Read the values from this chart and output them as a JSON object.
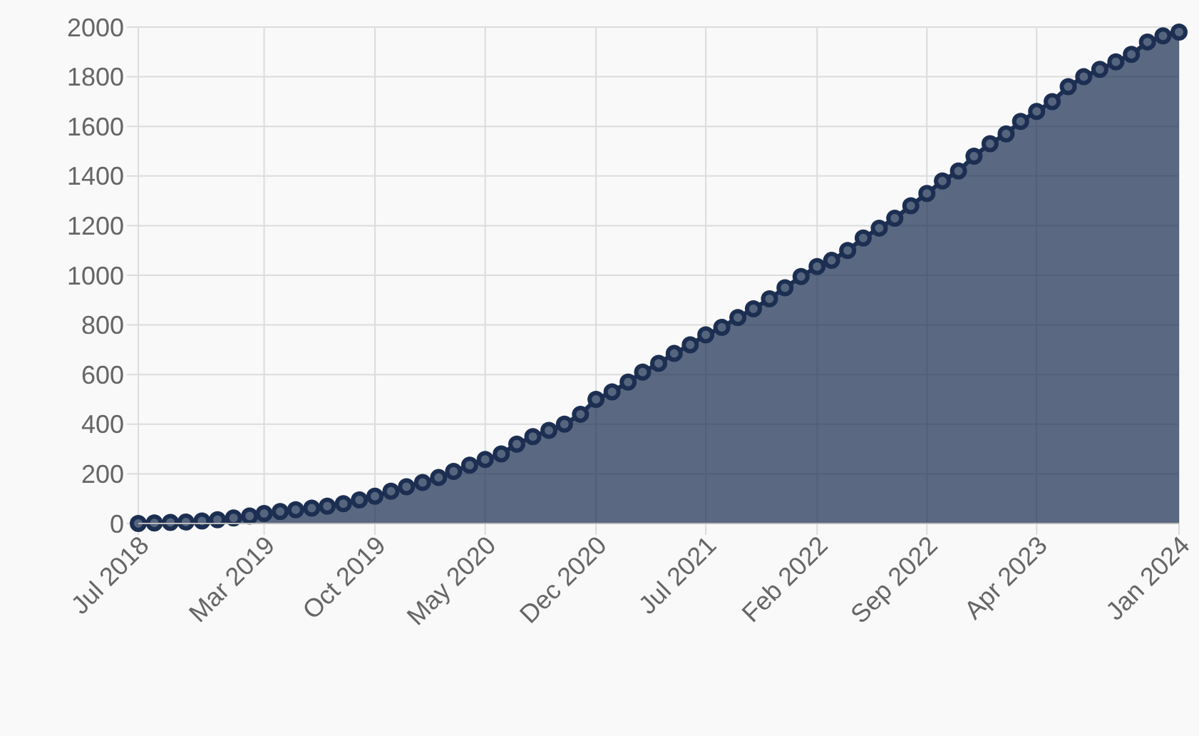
{
  "chart_data": {
    "type": "area",
    "xlim": [
      "2018-07",
      "2024-01"
    ],
    "xticks": [
      {
        "value": "2018-07",
        "label": "Jul 2018"
      },
      {
        "value": "2019-03",
        "label": "Mar 2019"
      },
      {
        "value": "2019-10",
        "label": "Oct 2019"
      },
      {
        "value": "2020-05",
        "label": "May 2020"
      },
      {
        "value": "2020-12",
        "label": "Dec 2020"
      },
      {
        "value": "2021-07",
        "label": "Jul 2021"
      },
      {
        "value": "2022-02",
        "label": "Feb 2022"
      },
      {
        "value": "2022-09",
        "label": "Sep 2022"
      },
      {
        "value": "2023-04",
        "label": "Apr 2023"
      },
      {
        "value": "2024-01",
        "label": "Jan 2024"
      }
    ],
    "ylim": [
      0,
      2000
    ],
    "yticks": [
      0,
      200,
      400,
      600,
      800,
      1000,
      1200,
      1400,
      1600,
      1800,
      2000
    ],
    "grid": true,
    "marker": "circle",
    "x": [
      "2018-07",
      "2018-08",
      "2018-09",
      "2018-10",
      "2018-11",
      "2018-12",
      "2019-01",
      "2019-02",
      "2019-03",
      "2019-04",
      "2019-05",
      "2019-06",
      "2019-07",
      "2019-08",
      "2019-09",
      "2019-10",
      "2019-11",
      "2019-12",
      "2020-01",
      "2020-02",
      "2020-03",
      "2020-04",
      "2020-05",
      "2020-06",
      "2020-07",
      "2020-08",
      "2020-09",
      "2020-10",
      "2020-11",
      "2020-12",
      "2021-01",
      "2021-02",
      "2021-03",
      "2021-04",
      "2021-05",
      "2021-06",
      "2021-07",
      "2021-08",
      "2021-09",
      "2021-10",
      "2021-11",
      "2021-12",
      "2022-01",
      "2022-02",
      "2022-03",
      "2022-04",
      "2022-05",
      "2022-06",
      "2022-07",
      "2022-08",
      "2022-09",
      "2022-10",
      "2022-11",
      "2022-12",
      "2023-01",
      "2023-02",
      "2023-03",
      "2023-04",
      "2023-05",
      "2023-06",
      "2023-07",
      "2023-08",
      "2023-09",
      "2023-10",
      "2023-11",
      "2023-12",
      "2024-01"
    ],
    "series": [
      {
        "color": "#1c2f52",
        "values": [
          0,
          2,
          4,
          6,
          10,
          15,
          22,
          30,
          40,
          48,
          55,
          62,
          70,
          80,
          95,
          110,
          130,
          148,
          165,
          185,
          210,
          235,
          258,
          280,
          320,
          350,
          375,
          400,
          440,
          500,
          530,
          570,
          610,
          645,
          685,
          720,
          760,
          790,
          830,
          865,
          905,
          950,
          995,
          1035,
          1060,
          1100,
          1150,
          1190,
          1230,
          1280,
          1330,
          1380,
          1420,
          1480,
          1530,
          1570,
          1620,
          1660,
          1700,
          1760,
          1800,
          1830,
          1860,
          1890,
          1940,
          1965,
          1980
        ]
      }
    ]
  }
}
